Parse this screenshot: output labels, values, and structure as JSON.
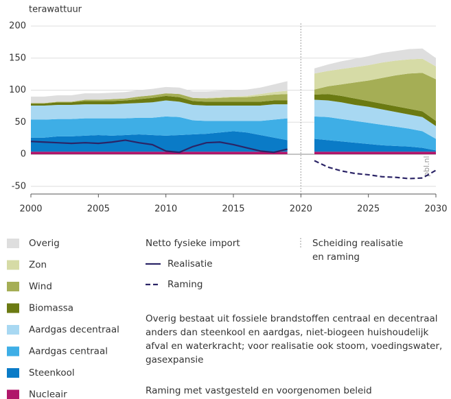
{
  "chart_data": {
    "type": "stacked_area",
    "y_label": "terawattuur",
    "x": [
      2000,
      2001,
      2002,
      2003,
      2004,
      2005,
      2006,
      2007,
      2008,
      2009,
      2010,
      2011,
      2012,
      2013,
      2014,
      2015,
      2016,
      2017,
      2018,
      2019,
      2020,
      2021,
      2022,
      2023,
      2024,
      2025,
      2026,
      2027,
      2028,
      2029,
      2030
    ],
    "xlim": [
      2000,
      2030
    ],
    "xticks": [
      2000,
      2005,
      2010,
      2015,
      2020,
      2025,
      2030
    ],
    "ylim": [
      -62,
      200
    ],
    "yticks": [
      -50,
      0,
      50,
      100,
      150,
      200
    ],
    "grid": true,
    "series": [
      {
        "name": "Nucleair",
        "color": "#b0166a",
        "values": [
          4,
          4,
          4,
          4,
          4,
          4,
          4,
          4,
          4,
          4,
          4,
          4,
          4,
          4,
          4,
          4,
          4,
          4,
          4,
          4,
          null,
          4,
          4,
          4,
          4,
          4,
          4,
          4,
          4,
          4,
          4
        ]
      },
      {
        "name": "Steenkool",
        "color": "#0a7bc7",
        "values": [
          22,
          22,
          24,
          24,
          25,
          26,
          25,
          26,
          27,
          26,
          25,
          26,
          27,
          28,
          30,
          32,
          30,
          26,
          22,
          18,
          null,
          20,
          18,
          16,
          14,
          12,
          10,
          9,
          8,
          6,
          2
        ]
      },
      {
        "name": "Aardgas centraal",
        "color": "#3eaee6",
        "values": [
          28,
          28,
          27,
          27,
          27,
          26,
          27,
          26,
          26,
          27,
          30,
          28,
          22,
          20,
          18,
          16,
          18,
          22,
          28,
          34,
          null,
          35,
          36,
          35,
          34,
          33,
          32,
          30,
          28,
          26,
          18
        ]
      },
      {
        "name": "Aardgas decentraal",
        "color": "#a8d8f2",
        "values": [
          22,
          22,
          22,
          22,
          22,
          22,
          22,
          23,
          23,
          24,
          25,
          24,
          24,
          24,
          24,
          24,
          24,
          24,
          24,
          22,
          null,
          26,
          26,
          26,
          25,
          25,
          24,
          23,
          22,
          22,
          20
        ]
      },
      {
        "name": "Biomassa",
        "color": "#6b7a12",
        "values": [
          3,
          3,
          4,
          4,
          5,
          5,
          5,
          5,
          6,
          7,
          7,
          7,
          6,
          6,
          6,
          6,
          6,
          6,
          6,
          6,
          null,
          8,
          10,
          10,
          10,
          9,
          9,
          9,
          9,
          9,
          8
        ]
      },
      {
        "name": "Wind",
        "color": "#a5ae55",
        "values": [
          1,
          1,
          1,
          1,
          2,
          2,
          3,
          3,
          4,
          4,
          4,
          5,
          5,
          5,
          6,
          7,
          7,
          9,
          9,
          10,
          null,
          8,
          12,
          18,
          25,
          32,
          40,
          48,
          55,
          60,
          65
        ]
      },
      {
        "name": "Zon",
        "color": "#d6dba6",
        "values": [
          0,
          0,
          0,
          0,
          0,
          0,
          0,
          0,
          0,
          0,
          0,
          0,
          0,
          1,
          1,
          1,
          2,
          3,
          4,
          5,
          null,
          25,
          24,
          24,
          24,
          24,
          24,
          23,
          22,
          22,
          20
        ]
      },
      {
        "name": "Overig",
        "color": "#dedede",
        "values": [
          10,
          10,
          10,
          10,
          10,
          10,
          10,
          10,
          10,
          10,
          10,
          10,
          10,
          10,
          10,
          10,
          10,
          10,
          12,
          15,
          null,
          8,
          10,
          12,
          13,
          14,
          15,
          15,
          16,
          16,
          13
        ]
      }
    ],
    "lines_title": "Netto fysieke import",
    "lines": [
      {
        "name": "Realisatie",
        "color": "#2b2466",
        "dash": "solid",
        "values": [
          20,
          19,
          18,
          17,
          18,
          17,
          19,
          22,
          18,
          15,
          5,
          3,
          12,
          18,
          19,
          15,
          10,
          5,
          3,
          8,
          null,
          null,
          null,
          null,
          null,
          null,
          null,
          null,
          null,
          null,
          null
        ]
      },
      {
        "name": "Raming",
        "color": "#2b2466",
        "dash": "dashed",
        "values": [
          null,
          null,
          null,
          null,
          null,
          null,
          null,
          null,
          null,
          null,
          null,
          null,
          null,
          null,
          null,
          null,
          null,
          null,
          null,
          null,
          null,
          -10,
          -20,
          -26,
          -30,
          -32,
          -35,
          -36,
          -38,
          -37,
          -25
        ]
      }
    ],
    "separator": {
      "x": 2020,
      "label": "Scheiding realisatie en raming"
    },
    "notes": [
      "Overig bestaat uit fossiele brandstoffen centraal en decentraal anders dan steenkool en aardgas, niet-biogeen huishoudelijk afval en waterkracht; voor realisatie ook stoom, voedingswater, gasexpansie",
      "Raming met vastgesteld en voorgenomen beleid"
    ],
    "watermark": "pbl.nl"
  }
}
